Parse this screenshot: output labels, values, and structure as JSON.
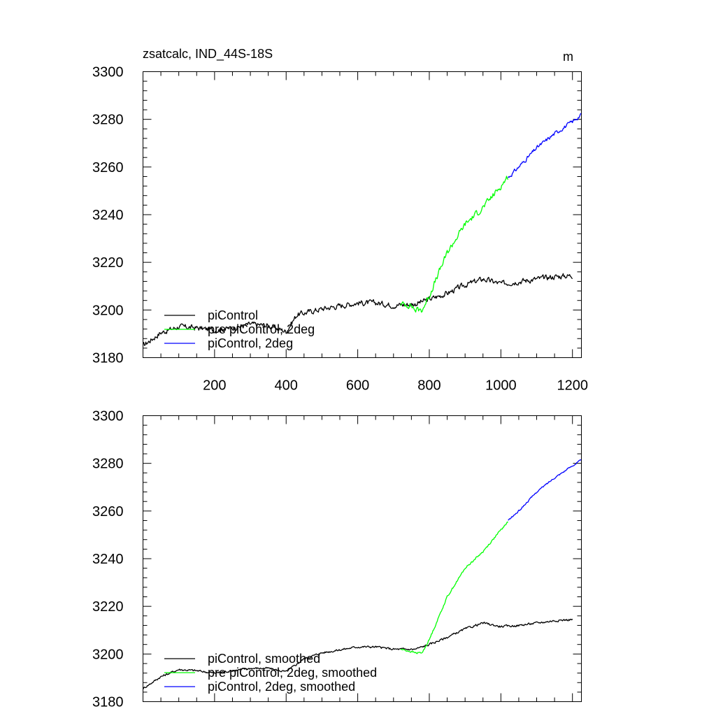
{
  "chart_data": [
    {
      "type": "line",
      "title": "zsatcalc, IND_44S-18S",
      "units": "m",
      "xlim": [
        0,
        1225
      ],
      "ylim": [
        3180,
        3300
      ],
      "xticks": [
        200,
        400,
        600,
        800,
        1000,
        1200
      ],
      "yticks": [
        3180,
        3200,
        3220,
        3240,
        3260,
        3280,
        3300
      ],
      "x_tick_labels_shown": true,
      "legend_position": "bottom-left",
      "series": [
        {
          "name": "piControl",
          "color": "#000000",
          "noise": 1.0,
          "points": [
            [
              0,
              3185
            ],
            [
              50,
              3190.5
            ],
            [
              100,
              3193
            ],
            [
              150,
              3192.5
            ],
            [
              200,
              3191.5
            ],
            [
              250,
              3192.5
            ],
            [
              300,
              3194
            ],
            [
              350,
              3193.5
            ],
            [
              400,
              3191
            ],
            [
              430,
              3198
            ],
            [
              500,
              3200.5
            ],
            [
              600,
              3203
            ],
            [
              650,
              3203
            ],
            [
              700,
              3202
            ],
            [
              760,
              3202.5
            ],
            [
              800,
              3204.5
            ],
            [
              850,
              3207
            ],
            [
              900,
              3210.5
            ],
            [
              950,
              3213
            ],
            [
              1000,
              3211
            ],
            [
              1050,
              3212
            ],
            [
              1100,
              3213
            ],
            [
              1150,
              3214
            ],
            [
              1200,
              3214.5
            ]
          ]
        },
        {
          "name": "pre piControl, 2deg",
          "color": "#00ff00",
          "noise": 1.1,
          "points": [
            [
              720,
              3202.5
            ],
            [
              750,
              3202
            ],
            [
              760,
              3200
            ],
            [
              780,
              3200
            ],
            [
              800,
              3206
            ],
            [
              850,
              3224
            ],
            [
              900,
              3236
            ],
            [
              950,
              3243
            ],
            [
              1000,
              3252
            ],
            [
              1020,
              3256
            ]
          ]
        },
        {
          "name": "piControl, 2deg",
          "color": "#0000ff",
          "noise": 0.7,
          "points": [
            [
              1020,
              3255.5
            ],
            [
              1050,
              3260
            ],
            [
              1100,
              3268
            ],
            [
              1150,
              3274
            ],
            [
              1200,
              3279
            ],
            [
              1225,
              3282
            ]
          ]
        }
      ]
    },
    {
      "type": "line",
      "title": "",
      "units": "",
      "xlim": [
        0,
        1225
      ],
      "ylim": [
        3180,
        3300
      ],
      "xticks": [
        200,
        400,
        600,
        800,
        1000,
        1200
      ],
      "yticks": [
        3180,
        3200,
        3220,
        3240,
        3260,
        3280,
        3300
      ],
      "x_tick_labels_shown": false,
      "legend_position": "bottom-left",
      "series": [
        {
          "name": "piControl, smoothed",
          "color": "#000000",
          "noise": 0.4,
          "points": [
            [
              0,
              3185.5
            ],
            [
              50,
              3190.5
            ],
            [
              100,
              3193.5
            ],
            [
              150,
              3193
            ],
            [
              200,
              3192
            ],
            [
              250,
              3193
            ],
            [
              300,
              3194
            ],
            [
              350,
              3194
            ],
            [
              400,
              3192.5
            ],
            [
              450,
              3198
            ],
            [
              500,
              3200.5
            ],
            [
              600,
              3203
            ],
            [
              650,
              3203
            ],
            [
              700,
              3202
            ],
            [
              760,
              3202
            ],
            [
              800,
              3204
            ],
            [
              850,
              3207
            ],
            [
              900,
              3210.5
            ],
            [
              950,
              3213
            ],
            [
              1000,
              3211.5
            ],
            [
              1050,
              3212
            ],
            [
              1100,
              3213
            ],
            [
              1150,
              3214
            ],
            [
              1200,
              3214.5
            ]
          ]
        },
        {
          "name": "pre piControl, 2deg, smoothed",
          "color": "#00ff00",
          "noise": 0.35,
          "points": [
            [
              720,
              3202
            ],
            [
              750,
              3201
            ],
            [
              760,
              3200.5
            ],
            [
              780,
              3200.5
            ],
            [
              800,
              3206
            ],
            [
              850,
              3224
            ],
            [
              900,
              3236
            ],
            [
              950,
              3243
            ],
            [
              1000,
              3252
            ],
            [
              1020,
              3255.5
            ]
          ]
        },
        {
          "name": "piControl, 2deg, smoothed",
          "color": "#0000ff",
          "noise": 0.3,
          "points": [
            [
              1020,
              3256
            ],
            [
              1050,
              3260
            ],
            [
              1100,
              3268
            ],
            [
              1150,
              3274
            ],
            [
              1200,
              3279
            ],
            [
              1225,
              3281.5
            ]
          ]
        }
      ]
    }
  ]
}
